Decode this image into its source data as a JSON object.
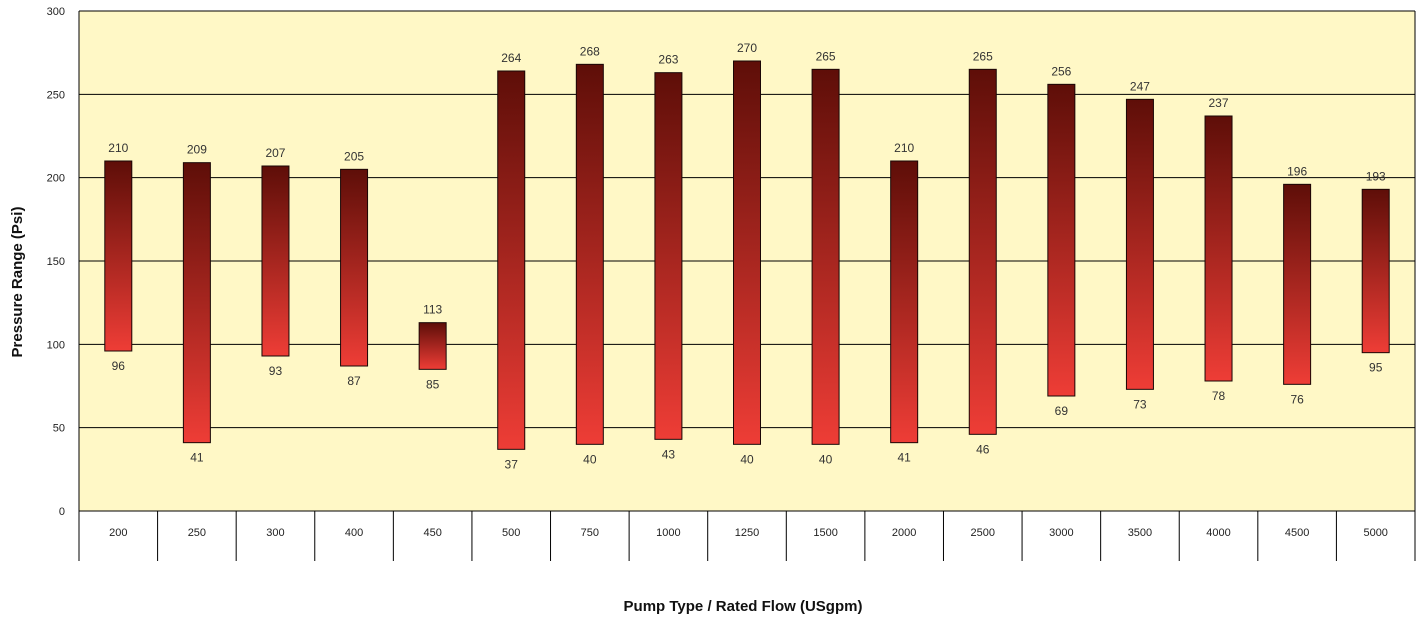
{
  "chart_data": {
    "type": "bar",
    "subtype": "floating-range",
    "xlabel": "Pump Type / Rated Flow (USgpm)",
    "ylabel": "Pressure Range (Psi)",
    "ylim": [
      0,
      300
    ],
    "yticks": [
      0,
      50,
      100,
      150,
      200,
      250,
      300
    ],
    "grid": true,
    "categories": [
      "200",
      "250",
      "300",
      "400",
      "450",
      "500",
      "750",
      "1000",
      "1250",
      "1500",
      "2000",
      "2500",
      "3000",
      "3500",
      "4000",
      "4500",
      "5000"
    ],
    "series": [
      {
        "low": [
          96,
          41,
          93,
          87,
          85,
          37,
          40,
          43,
          40,
          40,
          41,
          46,
          69,
          73,
          78,
          76,
          95
        ],
        "high": [
          210,
          209,
          207,
          205,
          113,
          264,
          268,
          263,
          270,
          265,
          210,
          265,
          256,
          247,
          237,
          196,
          193
        ]
      }
    ],
    "colors": {
      "plot_background": "#fff8c6",
      "bar_top": "#5e0e08",
      "bar_bottom": "#ee3d36",
      "bar_border": "#1a0606",
      "gridline": "#000000"
    }
  }
}
